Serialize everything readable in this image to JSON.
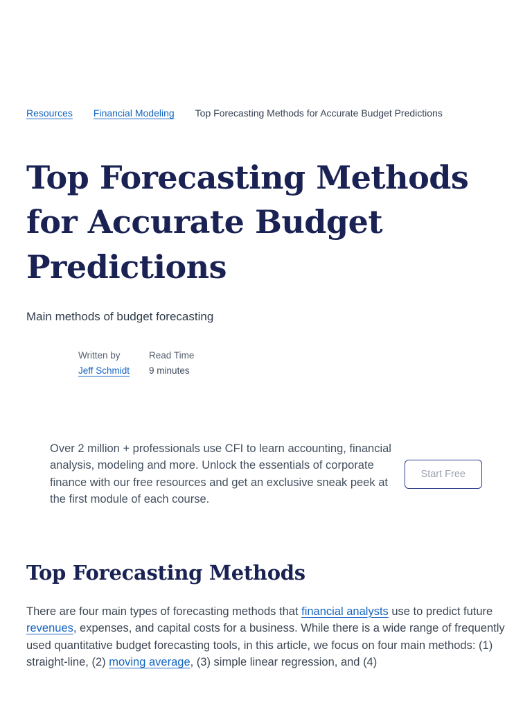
{
  "breadcrumb": {
    "items": [
      {
        "label": "Resources"
      },
      {
        "label": "Financial Modeling"
      },
      {
        "label": "Top Forecasting Methods for Accurate Budget Predictions"
      }
    ]
  },
  "article": {
    "title": "Top Forecasting Methods for Accurate Budget Predictions",
    "subtitle": "Main methods of budget forecasting",
    "author": {
      "label": "Written by",
      "name": "Jeff Schmidt"
    },
    "read_time": {
      "label": "Read Time",
      "value": "9 minutes"
    }
  },
  "promo": {
    "text": "Over 2 million + professionals use CFI to learn accounting, financial analysis, modeling and more. Unlock the essentials of corporate finance with our free resources and get an exclusive sneak peek at the first module of each course.",
    "button_label": "Start Free"
  },
  "section": {
    "heading": "Top Forecasting Methods",
    "paragraph": {
      "segments": [
        {
          "text": "There are four main types of forecasting methods that "
        },
        {
          "text": "financial analysts",
          "link": true
        },
        {
          "text": " use to predict future "
        },
        {
          "text": "revenues",
          "link": true
        },
        {
          "text": ", expenses, and capital costs for a business. While there is a wide range of frequently used quantitative budget forecasting tools, in this article, we focus on four main methods: (1) straight-line, (2) "
        },
        {
          "text": "moving average",
          "link": true
        },
        {
          "text": ", (3) simple linear regression, and (4)"
        }
      ]
    }
  },
  "colors": {
    "heading_navy": "#1a2254",
    "link_blue": "#1565c0",
    "body_text": "#3d4653",
    "button_border": "#2e3d8c",
    "button_text": "#9ba3af"
  }
}
